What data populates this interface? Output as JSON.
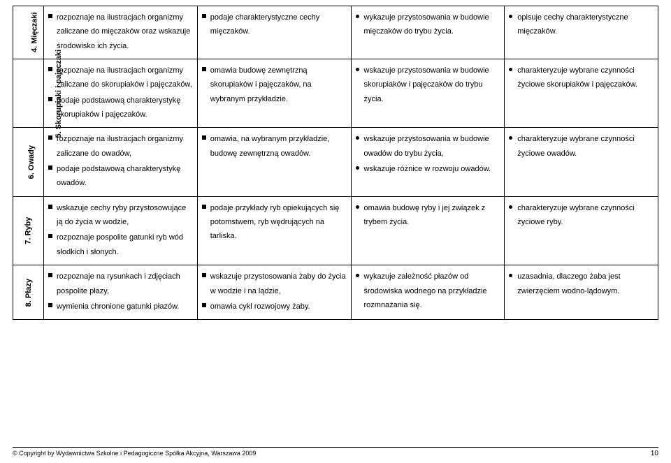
{
  "table": {
    "col_widths": [
      "44px",
      "auto",
      "auto",
      "auto",
      "auto"
    ],
    "rows": [
      {
        "header": "4. Mięczaki",
        "cells": [
          [
            {
              "marker": "sq",
              "text": "rozpoznaje na ilustracjach organizmy zaliczane do mięczaków oraz wskazuje środowisko ich życia."
            }
          ],
          [
            {
              "marker": "sq",
              "text": "podaje charakterystyczne cechy mięczaków."
            }
          ],
          [
            {
              "marker": "ci",
              "text": "wykazuje przystosowania w budowie mięczaków do trybu życia."
            }
          ],
          [
            {
              "marker": "ci",
              "text": "opisuje cechy charakterystyczne mięczaków."
            }
          ]
        ]
      },
      {
        "header": "5. Skorupiaki i pajęczaki",
        "cells": [
          [
            {
              "marker": "sq",
              "text": "rozpoznaje na ilustracjach organizmy zaliczane do skorupiaków i pajęczaków,"
            },
            {
              "marker": "sq",
              "text": "podaje podstawową charakterystykę skorupiaków i pajęczaków."
            }
          ],
          [
            {
              "marker": "sq",
              "text": "omawia budowę zewnętrzną skorupiaków i pajęczaków, na wybranym przykładzie."
            }
          ],
          [
            {
              "marker": "ci",
              "text": "wskazuje przystosowania w budowie skorupiaków i pajęczaków do trybu życia."
            }
          ],
          [
            {
              "marker": "ci",
              "text": "charakteryzuje wybrane czynności życiowe skorupiaków i pajęczaków."
            }
          ]
        ]
      },
      {
        "header": "6. Owady",
        "cells": [
          [
            {
              "marker": "sq",
              "text": "rozpoznaje na ilustracjach organizmy zaliczane do owadów,"
            },
            {
              "marker": "sq",
              "text": "podaje podstawową charakterystykę owadów."
            }
          ],
          [
            {
              "marker": "sq",
              "text": "omawia, na wybranym przykładzie, budowę zewnętrzną owadów."
            }
          ],
          [
            {
              "marker": "ci",
              "text": "wskazuje przystosowania w budowie owadów do trybu życia,"
            },
            {
              "marker": "ci",
              "text": "wskazuje różnice w rozwoju owadów."
            }
          ],
          [
            {
              "marker": "ci",
              "text": "charakteryzuje wybrane czynności życiowe owadów."
            }
          ]
        ]
      },
      {
        "header": "7. Ryby",
        "cells": [
          [
            {
              "marker": "sq",
              "text": "wskazuje cechy ryby przystosowujące ją do życia w wodzie,"
            },
            {
              "marker": "sq",
              "text": "rozpoznaje pospolite gatunki ryb wód słodkich i słonych."
            }
          ],
          [
            {
              "marker": "sq",
              "text": "podaje przykłady ryb opiekujących się potomstwem, ryb wędrujących na tarliska."
            }
          ],
          [
            {
              "marker": "ci",
              "text": "omawia budowę ryby i jej związek z trybem życia."
            }
          ],
          [
            {
              "marker": "ci",
              "text": "charakteryzuje wybrane czynności życiowe ryby."
            }
          ]
        ]
      },
      {
        "header": "8. Płazy",
        "cells": [
          [
            {
              "marker": "sq",
              "text": "rozpoznaje na rysunkach i zdjęciach pospolite płazy,"
            },
            {
              "marker": "sq",
              "text": "wymienia chronione gatunki płazów."
            }
          ],
          [
            {
              "marker": "sq",
              "text": "wskazuje przystosowania żaby do życia w wodzie i na lądzie,"
            },
            {
              "marker": "sq",
              "text": "omawia cykl rozwojowy żaby."
            }
          ],
          [
            {
              "marker": "ci",
              "text": "wykazuje zależność płazów od środowiska wodnego na przykładzie rozmnażania się."
            }
          ],
          [
            {
              "marker": "ci",
              "text": "uzasadnia, dlaczego żaba jest zwierzęciem wodno-lądowym."
            }
          ]
        ]
      }
    ]
  },
  "footer": {
    "copyright": "© Copyright by Wydawnictwa Szkolne i Pedagogiczne Spółka Akcyjna, Warszawa 2009",
    "page_number": "10"
  }
}
